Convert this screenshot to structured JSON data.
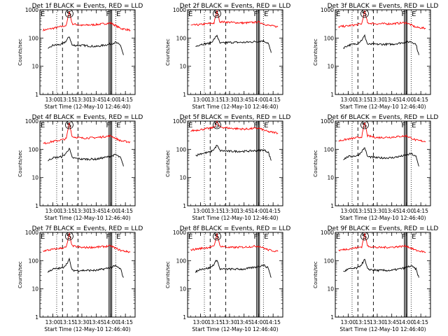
{
  "figure": {
    "y_axis_label": "Counts/sec",
    "x_axis_label": "Start Time (12-May-10 12:46:40)"
  },
  "chart_data": [
    {
      "type": "line",
      "title": "Det 1f  BLACK = Events, RED = LLD",
      "xlabel": "Start Time (12-May-10 12:46:40)",
      "ylabel": "Counts/sec",
      "yscale": "log",
      "ylim": [
        1,
        1000
      ],
      "xlim": [
        "12:46:40",
        "14:25"
      ],
      "x_ticks": [
        "13:00",
        "13:15",
        "13:30",
        "13:45",
        "14:00",
        "14:15"
      ],
      "y_ticks": [
        "1",
        "10",
        "100",
        "1000"
      ],
      "grid": false,
      "markers": [
        {
          "label": "E",
          "time": "12:46:40"
        },
        {
          "label": "S",
          "time": "13:17"
        },
        {
          "label": "F",
          "time": "14:00"
        },
        {
          "label": "E",
          "time": "14:05"
        }
      ],
      "series": [
        {
          "color": "#ff0000",
          "x": [
            "12:50",
            "13:00",
            "13:10",
            "13:14",
            "13:17",
            "13:20",
            "13:30",
            "13:45",
            "14:00",
            "14:10",
            "14:20"
          ],
          "values": [
            190,
            220,
            260,
            280,
            900,
            320,
            280,
            300,
            340,
            220,
            190
          ]
        },
        {
          "color": "#000000",
          "x": [
            "12:55",
            "13:00",
            "13:10",
            "13:14",
            "13:17",
            "13:20",
            "13:30",
            "13:45",
            "13:58",
            "14:05",
            "14:10",
            "14:13"
          ],
          "values": [
            40,
            55,
            60,
            80,
            115,
            55,
            55,
            50,
            60,
            70,
            55,
            25
          ]
        }
      ]
    },
    {
      "type": "line",
      "title": "Det 2f  BLACK = Events, RED = LLD",
      "xlabel": "Start Time (12-May-10 12:46:40)",
      "ylabel": "Counts/sec",
      "yscale": "log",
      "ylim": [
        1,
        1000
      ],
      "xlim": [
        "12:46:40",
        "14:25"
      ],
      "x_ticks": [
        "13:00",
        "13:15",
        "13:30",
        "13:45",
        "14:00",
        "14:15"
      ],
      "y_ticks": [
        "1",
        "10",
        "100",
        "1000"
      ],
      "grid": false,
      "markers": [
        {
          "label": "E",
          "time": "12:46:40"
        },
        {
          "label": "S",
          "time": "13:17"
        },
        {
          "label": "F",
          "time": "14:00"
        },
        {
          "label": "E",
          "time": "14:05"
        }
      ],
      "series": [
        {
          "color": "#ff0000",
          "x": [
            "12:50",
            "13:00",
            "13:10",
            "13:14",
            "13:17",
            "13:20",
            "13:30",
            "13:45",
            "14:00",
            "14:10",
            "14:20"
          ],
          "values": [
            280,
            300,
            330,
            340,
            900,
            380,
            360,
            340,
            370,
            280,
            250
          ]
        },
        {
          "color": "#000000",
          "x": [
            "12:55",
            "13:00",
            "13:10",
            "13:14",
            "13:17",
            "13:20",
            "13:30",
            "13:45",
            "13:58",
            "14:05",
            "14:10",
            "14:13"
          ],
          "values": [
            50,
            60,
            65,
            90,
            125,
            65,
            70,
            70,
            75,
            80,
            65,
            30
          ]
        }
      ]
    },
    {
      "type": "line",
      "title": "Det 3f  BLACK = Events, RED = LLD",
      "xlabel": "Start Time (12-May-10 12:46:40)",
      "ylabel": "Counts/sec",
      "yscale": "log",
      "ylim": [
        1,
        1000
      ],
      "xlim": [
        "12:46:40",
        "14:25"
      ],
      "x_ticks": [
        "13:00",
        "13:15",
        "13:30",
        "13:45",
        "14:00",
        "14:15"
      ],
      "y_ticks": [
        "1",
        "10",
        "100",
        "1000"
      ],
      "grid": false,
      "markers": [
        {
          "label": "E",
          "time": "12:46:40"
        },
        {
          "label": "S",
          "time": "13:17"
        },
        {
          "label": "F",
          "time": "14:00"
        },
        {
          "label": "E",
          "time": "14:05"
        }
      ],
      "series": [
        {
          "color": "#ff0000",
          "x": [
            "12:50",
            "13:00",
            "13:10",
            "13:14",
            "13:17",
            "13:20",
            "13:30",
            "13:45",
            "14:00",
            "14:10",
            "14:20"
          ],
          "values": [
            250,
            270,
            300,
            320,
            900,
            340,
            320,
            320,
            350,
            240,
            220
          ]
        },
        {
          "color": "#000000",
          "x": [
            "12:55",
            "13:00",
            "13:10",
            "13:14",
            "13:17",
            "13:20",
            "13:30",
            "13:45",
            "13:58",
            "14:05",
            "14:10",
            "14:13"
          ],
          "values": [
            45,
            55,
            65,
            85,
            120,
            60,
            60,
            60,
            70,
            75,
            60,
            25
          ]
        }
      ]
    },
    {
      "type": "line",
      "title": "Det 4f  BLACK = Events, RED = LLD",
      "xlabel": "Start Time (12-May-10 12:46:40)",
      "ylabel": "Counts/sec",
      "yscale": "log",
      "ylim": [
        1,
        1000
      ],
      "xlim": [
        "12:46:40",
        "14:25"
      ],
      "x_ticks": [
        "13:00",
        "13:15",
        "13:30",
        "13:45",
        "14:00",
        "14:15"
      ],
      "y_ticks": [
        "1",
        "10",
        "100",
        "1000"
      ],
      "grid": false,
      "markers": [
        {
          "label": "E",
          "time": "12:46:40"
        },
        {
          "label": "S",
          "time": "13:17"
        },
        {
          "label": "F",
          "time": "14:00"
        },
        {
          "label": "E",
          "time": "14:05"
        }
      ],
      "series": [
        {
          "color": "#ff0000",
          "x": [
            "12:50",
            "13:00",
            "13:10",
            "13:14",
            "13:17",
            "13:20",
            "13:30",
            "13:45",
            "14:00",
            "14:10",
            "14:20"
          ],
          "values": [
            160,
            190,
            220,
            240,
            900,
            280,
            250,
            260,
            300,
            200,
            180
          ]
        },
        {
          "color": "#000000",
          "x": [
            "12:55",
            "13:00",
            "13:10",
            "13:14",
            "13:17",
            "13:20",
            "13:30",
            "13:45",
            "13:58",
            "14:05",
            "14:10",
            "14:13"
          ],
          "values": [
            40,
            50,
            55,
            75,
            110,
            50,
            45,
            45,
            55,
            65,
            50,
            25
          ]
        }
      ]
    },
    {
      "type": "line",
      "title": "Det 5f  BLACK = Events, RED = LLD",
      "xlabel": "Start Time (12-May-10 12:46:40)",
      "ylabel": "Counts/sec",
      "yscale": "log",
      "ylim": [
        1,
        1000
      ],
      "xlim": [
        "12:46:40",
        "14:25"
      ],
      "x_ticks": [
        "13:00",
        "13:15",
        "13:30",
        "13:45",
        "14:00",
        "14:15"
      ],
      "y_ticks": [
        "1",
        "10",
        "100",
        "1000"
      ],
      "grid": false,
      "markers": [
        {
          "label": "E",
          "time": "12:46:40"
        },
        {
          "label": "S",
          "time": "13:17"
        },
        {
          "label": "F",
          "time": "14:00"
        },
        {
          "label": "E",
          "time": "14:05"
        }
      ],
      "series": [
        {
          "color": "#ff0000",
          "x": [
            "12:50",
            "13:00",
            "13:10",
            "13:14",
            "13:17",
            "13:20",
            "13:30",
            "13:45",
            "14:00",
            "14:10",
            "14:20"
          ],
          "values": [
            450,
            500,
            560,
            600,
            950,
            620,
            560,
            520,
            560,
            420,
            380
          ]
        },
        {
          "color": "#000000",
          "x": [
            "12:55",
            "13:00",
            "13:10",
            "13:14",
            "13:17",
            "13:20",
            "13:30",
            "13:45",
            "13:58",
            "14:05",
            "14:10",
            "14:13"
          ],
          "values": [
            60,
            70,
            80,
            100,
            140,
            90,
            85,
            85,
            90,
            95,
            80,
            40
          ]
        }
      ]
    },
    {
      "type": "line",
      "title": "Det 6f  BLACK = Events, RED = LLD",
      "xlabel": "Start Time (12-May-10 12:46:40)",
      "ylabel": "Counts/sec",
      "yscale": "log",
      "ylim": [
        1,
        1000
      ],
      "xlim": [
        "12:46:40",
        "14:25"
      ],
      "x_ticks": [
        "13:00",
        "13:15",
        "13:30",
        "13:45",
        "14:00",
        "14:15"
      ],
      "y_ticks": [
        "1",
        "10",
        "100",
        "1000"
      ],
      "grid": false,
      "markers": [
        {
          "label": "E",
          "time": "12:46:40"
        },
        {
          "label": "S",
          "time": "13:17"
        },
        {
          "label": "F",
          "time": "14:00"
        },
        {
          "label": "E",
          "time": "14:05"
        }
      ],
      "series": [
        {
          "color": "#ff0000",
          "x": [
            "12:50",
            "13:00",
            "13:10",
            "13:14",
            "13:17",
            "13:20",
            "13:30",
            "13:45",
            "14:00",
            "14:10",
            "14:20"
          ],
          "values": [
            200,
            230,
            260,
            280,
            900,
            300,
            260,
            270,
            300,
            210,
            190
          ]
        },
        {
          "color": "#000000",
          "x": [
            "12:55",
            "13:00",
            "13:10",
            "13:14",
            "13:17",
            "13:20",
            "13:30",
            "13:45",
            "13:58",
            "14:05",
            "14:10",
            "14:13"
          ],
          "values": [
            45,
            55,
            60,
            85,
            115,
            55,
            50,
            50,
            60,
            70,
            55,
            25
          ]
        }
      ]
    },
    {
      "type": "line",
      "title": "Det 7f  BLACK = Events, RED = LLD",
      "xlabel": "Start Time (12-May-10 12:46:40)",
      "ylabel": "Counts/sec",
      "yscale": "log",
      "ylim": [
        1,
        1000
      ],
      "xlim": [
        "12:46:40",
        "14:25"
      ],
      "x_ticks": [
        "13:00",
        "13:15",
        "13:30",
        "13:45",
        "14:00",
        "14:15"
      ],
      "y_ticks": [
        "1",
        "10",
        "100",
        "1000"
      ],
      "grid": false,
      "markers": [
        {
          "label": "E",
          "time": "12:46:40"
        },
        {
          "label": "S",
          "time": "13:17"
        },
        {
          "label": "F",
          "time": "14:00"
        },
        {
          "label": "E",
          "time": "14:05"
        }
      ],
      "series": [
        {
          "color": "#ff0000",
          "x": [
            "12:50",
            "13:00",
            "13:10",
            "13:14",
            "13:17",
            "13:20",
            "13:30",
            "13:45",
            "14:00",
            "14:10",
            "14:20"
          ],
          "values": [
            220,
            250,
            280,
            300,
            900,
            330,
            290,
            300,
            330,
            230,
            200
          ]
        },
        {
          "color": "#000000",
          "x": [
            "12:55",
            "13:00",
            "13:10",
            "13:14",
            "13:17",
            "13:20",
            "13:30",
            "13:45",
            "13:58",
            "14:05",
            "14:10",
            "14:13"
          ],
          "values": [
            40,
            50,
            55,
            75,
            110,
            45,
            45,
            45,
            55,
            65,
            50,
            25
          ]
        }
      ]
    },
    {
      "type": "line",
      "title": "Det 8f  BLACK = Events, RED = LLD",
      "xlabel": "Start Time (12-May-10 12:46:40)",
      "ylabel": "Counts/sec",
      "yscale": "log",
      "ylim": [
        1,
        1000
      ],
      "xlim": [
        "12:46:40",
        "14:25"
      ],
      "x_ticks": [
        "13:00",
        "13:15",
        "13:30",
        "13:45",
        "14:00",
        "14:15"
      ],
      "y_ticks": [
        "1",
        "10",
        "100",
        "1000"
      ],
      "grid": false,
      "markers": [
        {
          "label": "E",
          "time": "12:46:40"
        },
        {
          "label": "S",
          "time": "13:17"
        },
        {
          "label": "F",
          "time": "14:00"
        },
        {
          "label": "E",
          "time": "14:05"
        }
      ],
      "series": [
        {
          "color": "#ff0000",
          "x": [
            "12:50",
            "13:00",
            "13:10",
            "13:14",
            "13:17",
            "13:20",
            "13:30",
            "13:45",
            "14:00",
            "14:10",
            "14:20"
          ],
          "values": [
            240,
            270,
            300,
            320,
            900,
            330,
            290,
            300,
            330,
            240,
            210
          ]
        },
        {
          "color": "#000000",
          "x": [
            "12:55",
            "13:00",
            "13:10",
            "13:14",
            "13:17",
            "13:20",
            "13:30",
            "13:45",
            "13:58",
            "14:05",
            "14:10",
            "14:13"
          ],
          "values": [
            40,
            50,
            55,
            75,
            110,
            50,
            50,
            50,
            60,
            70,
            55,
            25
          ]
        }
      ]
    },
    {
      "type": "line",
      "title": "Det 9f  BLACK = Events, RED = LLD",
      "xlabel": "Start Time (12-May-10 12:46:40)",
      "ylabel": "Counts/sec",
      "yscale": "log",
      "ylim": [
        1,
        1000
      ],
      "xlim": [
        "12:46:40",
        "14:25"
      ],
      "x_ticks": [
        "13:00",
        "13:15",
        "13:30",
        "13:45",
        "14:00",
        "14:15"
      ],
      "y_ticks": [
        "1",
        "10",
        "100",
        "1000"
      ],
      "grid": false,
      "markers": [
        {
          "label": "E",
          "time": "12:46:40"
        },
        {
          "label": "S",
          "time": "13:17"
        },
        {
          "label": "F",
          "time": "14:00"
        },
        {
          "label": "E",
          "time": "14:05"
        }
      ],
      "series": [
        {
          "color": "#ff0000",
          "x": [
            "12:50",
            "13:00",
            "13:10",
            "13:14",
            "13:17",
            "13:20",
            "13:30",
            "13:45",
            "14:00",
            "14:10",
            "14:20"
          ],
          "values": [
            230,
            260,
            290,
            310,
            900,
            330,
            290,
            300,
            330,
            230,
            200
          ]
        },
        {
          "color": "#000000",
          "x": [
            "12:55",
            "13:00",
            "13:10",
            "13:14",
            "13:17",
            "13:20",
            "13:30",
            "13:45",
            "13:58",
            "14:05",
            "14:10",
            "14:13"
          ],
          "values": [
            40,
            50,
            55,
            75,
            110,
            50,
            45,
            45,
            55,
            65,
            50,
            25
          ]
        }
      ]
    }
  ]
}
